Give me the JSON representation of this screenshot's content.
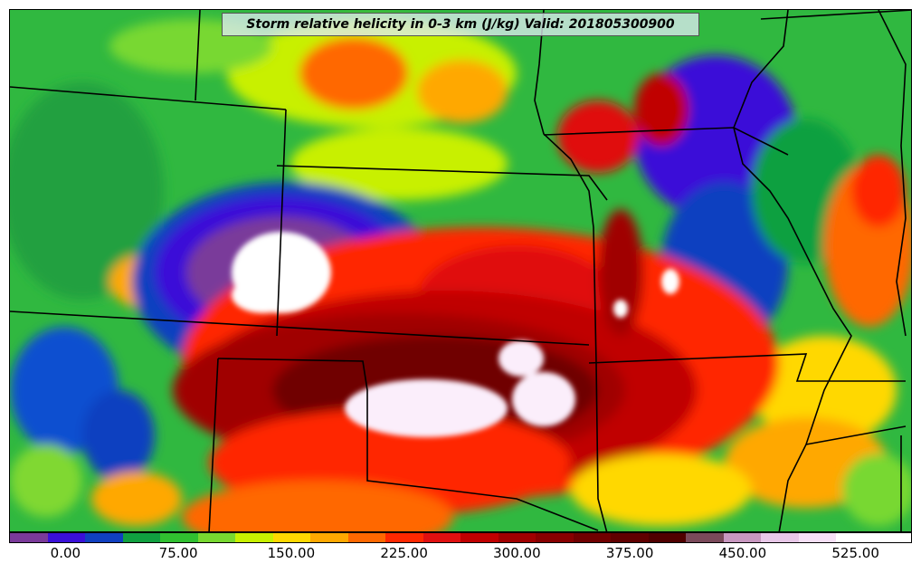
{
  "title": "Storm relative helicity in 0-3 km (J/kg) Valid: 201805300900",
  "colorbar": {
    "colors": [
      "#7a3a9a",
      "#3a10d8",
      "#1040c0",
      "#10a040",
      "#30c030",
      "#78d830",
      "#c8f000",
      "#ffd800",
      "#ffa800",
      "#ff6800",
      "#ff2800",
      "#e01010",
      "#c00000",
      "#a00000",
      "#880000",
      "#700000",
      "#600000",
      "#500000",
      "#7a4a5a",
      "#c898c0",
      "#e8c8e8",
      "#f6e0f6",
      "#ffffff",
      "#ffffff"
    ],
    "tick_labels": [
      "0.00",
      "75.00",
      "150.00",
      "225.00",
      "300.00",
      "375.00",
      "450.00",
      "525.00"
    ]
  },
  "map": {
    "background": "#30b840",
    "legend_min": -37.5,
    "legend_max": 562.5
  }
}
